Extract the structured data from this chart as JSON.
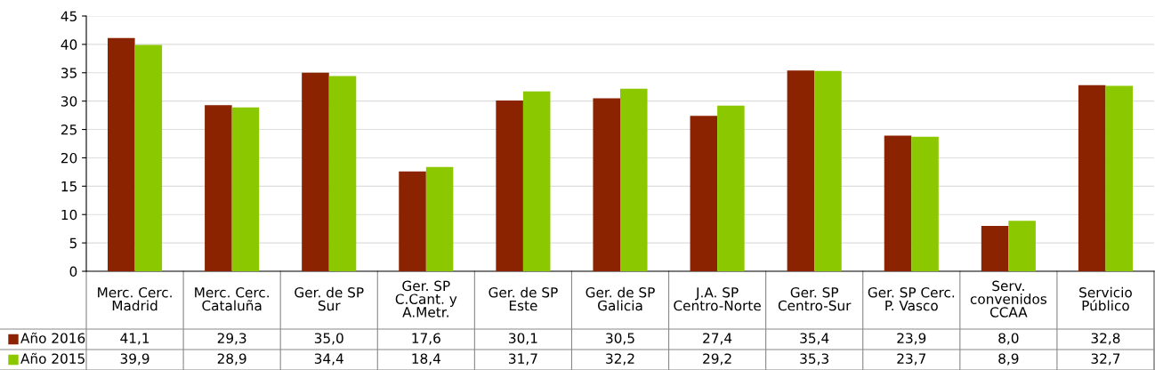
{
  "chart_data": {
    "type": "bar",
    "categories": [
      "Merc. Cerc.\nMadrid",
      "Merc. Cerc.\nCataluña",
      "Ger. de SP\nSur",
      "Ger. SP\nC.Cant. y\nA.Metr.",
      "Ger. de SP\nEste",
      "Ger. de SP\nGalicia",
      "J.A. SP\nCentro-Norte",
      "Ger. SP\nCentro-Sur",
      "Ger. SP Cerc.\nP. Vasco",
      "Serv.\nconvenidos\nCCAA",
      "Servicio\nPúblico"
    ],
    "series": [
      {
        "name": "Año 2016",
        "color": "#8b2200",
        "values": [
          41.1,
          29.3,
          35.0,
          17.6,
          30.1,
          30.5,
          27.4,
          35.4,
          23.9,
          8.0,
          32.8
        ],
        "value_labels": [
          "41,1",
          "29,3",
          "35,0",
          "17,6",
          "30,1",
          "30,5",
          "27,4",
          "35,4",
          "23,9",
          "8,0",
          "32,8"
        ]
      },
      {
        "name": "Año 2015",
        "color": "#8cc800",
        "values": [
          39.9,
          28.9,
          34.4,
          18.4,
          31.7,
          32.2,
          29.2,
          35.3,
          23.7,
          8.9,
          32.7
        ],
        "value_labels": [
          "39,9",
          "28,9",
          "34,4",
          "18,4",
          "31,7",
          "32,2",
          "29,2",
          "35,3",
          "23,7",
          "8,9",
          "32,7"
        ]
      }
    ],
    "ylim": [
      0,
      45
    ],
    "yticks": [
      0,
      5,
      10,
      15,
      20,
      25,
      30,
      35,
      40,
      45
    ],
    "grid": "y",
    "legend": "bottom left"
  }
}
